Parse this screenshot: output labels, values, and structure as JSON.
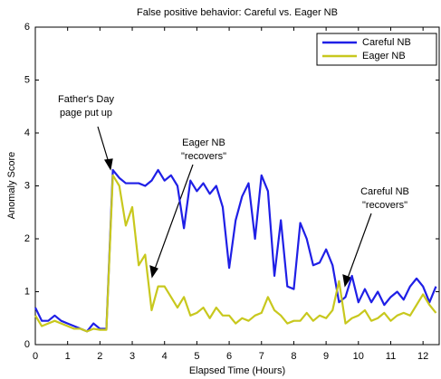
{
  "chart_data": {
    "type": "line",
    "title": "False positive behavior: Careful vs. Eager NB",
    "xlabel": "Elapsed Time (Hours)",
    "ylabel": "Anomaly Score",
    "x": [
      0,
      0.2,
      0.4,
      0.6,
      0.8,
      1.0,
      1.2,
      1.4,
      1.6,
      1.8,
      2.0,
      2.2,
      2.4,
      2.6,
      2.8,
      3.0,
      3.2,
      3.4,
      3.6,
      3.8,
      4.0,
      4.2,
      4.4,
      4.6,
      4.8,
      5.0,
      5.2,
      5.4,
      5.6,
      5.8,
      6.0,
      6.2,
      6.4,
      6.6,
      6.8,
      7.0,
      7.2,
      7.4,
      7.6,
      7.8,
      8.0,
      8.2,
      8.4,
      8.6,
      8.8,
      9.0,
      9.2,
      9.4,
      9.6,
      9.8,
      10.0,
      10.2,
      10.4,
      10.6,
      10.8,
      11.0,
      11.2,
      11.4,
      11.6,
      11.8,
      12.0,
      12.2,
      12.4
    ],
    "series": [
      {
        "name": "Careful NB",
        "color": "#1f1fe6",
        "values": [
          0.7,
          0.45,
          0.45,
          0.55,
          0.45,
          0.4,
          0.35,
          0.3,
          0.25,
          0.4,
          0.3,
          0.3,
          3.3,
          3.15,
          3.05,
          3.05,
          3.05,
          3.0,
          3.1,
          3.3,
          3.1,
          3.2,
          3.0,
          2.2,
          3.1,
          2.9,
          3.05,
          2.85,
          3.0,
          2.6,
          1.45,
          2.35,
          2.8,
          3.05,
          2.0,
          3.2,
          2.9,
          1.3,
          2.35,
          1.1,
          1.05,
          2.3,
          2.0,
          1.5,
          1.55,
          1.8,
          1.5,
          0.8,
          0.9,
          1.3,
          0.8,
          1.05,
          0.8,
          1.0,
          0.75,
          0.9,
          1.0,
          0.85,
          1.1,
          1.25,
          1.1,
          0.8,
          1.1
        ]
      },
      {
        "name": "Eager NB",
        "color": "#c8c81e",
        "values": [
          0.55,
          0.35,
          0.4,
          0.45,
          0.4,
          0.35,
          0.3,
          0.3,
          0.25,
          0.3,
          0.28,
          0.28,
          3.2,
          3.0,
          2.25,
          2.6,
          1.5,
          1.7,
          0.65,
          1.1,
          1.1,
          0.9,
          0.7,
          0.9,
          0.55,
          0.6,
          0.7,
          0.5,
          0.7,
          0.55,
          0.55,
          0.4,
          0.5,
          0.45,
          0.55,
          0.6,
          0.9,
          0.65,
          0.55,
          0.4,
          0.45,
          0.45,
          0.6,
          0.45,
          0.55,
          0.5,
          0.65,
          1.2,
          0.4,
          0.5,
          0.55,
          0.65,
          0.45,
          0.5,
          0.6,
          0.45,
          0.55,
          0.6,
          0.55,
          0.75,
          0.95,
          0.75,
          0.6
        ]
      }
    ],
    "xlim": [
      0,
      12.5
    ],
    "xticks": [
      0,
      1,
      2,
      3,
      4,
      5,
      6,
      7,
      8,
      9,
      10,
      11,
      12
    ],
    "ylim": [
      0,
      6
    ],
    "yticks": [
      0,
      1,
      2,
      3,
      4,
      5,
      6
    ],
    "legend": "upper right",
    "annotations": [
      {
        "text": [
          "Father's Day",
          "page put up"
        ]
      },
      {
        "text": [
          "Eager NB",
          "\"recovers\""
        ]
      },
      {
        "text": [
          "Careful NB",
          "\"recovers\""
        ]
      }
    ]
  }
}
